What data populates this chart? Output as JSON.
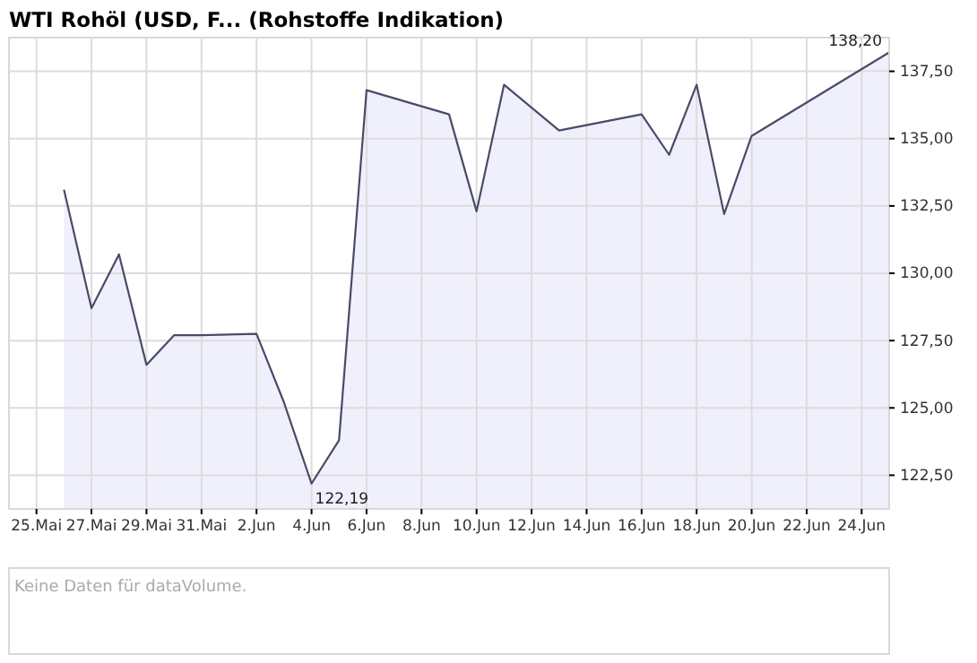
{
  "chart_data": {
    "type": "area",
    "title": "WTI Rohöl (USD, F... (Rohstoffe Indikation)",
    "x": [
      "--05-26",
      "--05-27",
      "--05-28",
      "--05-29",
      "--05-30",
      "--05-31",
      "--06-02",
      "--06-03",
      "--06-04",
      "--06-05",
      "--06-06",
      "--06-09",
      "--06-10",
      "--06-11",
      "--06-13",
      "--06-16",
      "--06-17",
      "--06-18",
      "--06-19",
      "--06-20",
      "--06-25"
    ],
    "series": [
      {
        "color": "#4a4a6a",
        "values": [
          133.1,
          128.7,
          130.7,
          126.6,
          127.7,
          127.7,
          127.75,
          125.2,
          122.19,
          123.8,
          136.8,
          135.9,
          132.3,
          137.0,
          135.3,
          135.9,
          134.4,
          137.0,
          132.2,
          135.1,
          138.2
        ]
      }
    ],
    "xlim": [
      "--05-24",
      "--06-25"
    ],
    "xticks": [
      {
        "value": "--05-25",
        "label": "25.Mai"
      },
      {
        "value": "--05-27",
        "label": "27.Mai"
      },
      {
        "value": "--05-29",
        "label": "29.Mai"
      },
      {
        "value": "--05-31",
        "label": "31.Mai"
      },
      {
        "value": "--06-02",
        "label": "2.Jun"
      },
      {
        "value": "--06-04",
        "label": "4.Jun"
      },
      {
        "value": "--06-06",
        "label": "6.Jun"
      },
      {
        "value": "--06-08",
        "label": "8.Jun"
      },
      {
        "value": "--06-10",
        "label": "10.Jun"
      },
      {
        "value": "--06-12",
        "label": "12.Jun"
      },
      {
        "value": "--06-14",
        "label": "14.Jun"
      },
      {
        "value": "--06-16",
        "label": "16.Jun"
      },
      {
        "value": "--06-18",
        "label": "18.Jun"
      },
      {
        "value": "--06-20",
        "label": "20.Jun"
      },
      {
        "value": "--06-22",
        "label": "22.Jun"
      },
      {
        "value": "--06-24",
        "label": "24.Jun"
      }
    ],
    "ylim": [
      121.25,
      138.75
    ],
    "yticks": [
      {
        "value": 122.5,
        "label": "122,50"
      },
      {
        "value": 125,
        "label": "125,00"
      },
      {
        "value": 127.5,
        "label": "127,50"
      },
      {
        "value": 130,
        "label": "130,00"
      },
      {
        "value": 132.5,
        "label": "132,50"
      },
      {
        "value": 135,
        "label": "135,00"
      },
      {
        "value": 137.5,
        "label": "137,50"
      }
    ],
    "grid": true,
    "annotations": [
      {
        "text": "138,20",
        "x": "--06-25",
        "y": 138.2
      },
      {
        "text": "122,19",
        "x": "--06-04",
        "y": 122.19
      },
      "Keine Daten für dataVolume."
    ]
  }
}
